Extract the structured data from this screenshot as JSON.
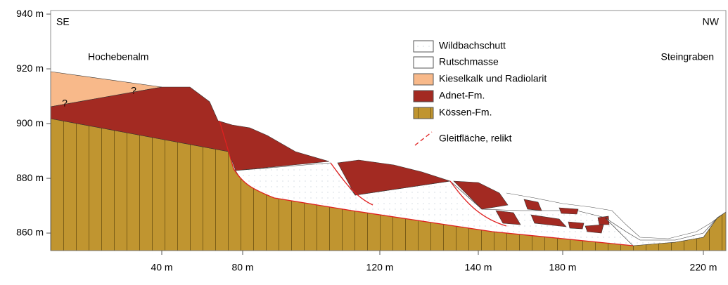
{
  "labels": {
    "left": "SE",
    "right": "NW",
    "site_left": "Hochebenalm",
    "site_right": "Steingraben",
    "question_marks": [
      "?",
      "?"
    ]
  },
  "legend": [
    "Wildbachschutt",
    "Rutschmasse",
    "Kieselkalk und Radiolarit",
    "Adnet-Fm.",
    "Kössen-Fm.",
    "Gleitfläche, relikt"
  ],
  "y_axis": {
    "ylim": [
      853.6,
      941.3
    ],
    "ticks": [
      {
        "value": 940,
        "label": "940 m"
      },
      {
        "value": 920,
        "label": "920 m"
      },
      {
        "value": 900,
        "label": "900 m"
      },
      {
        "value": 880,
        "label": "880 m"
      },
      {
        "value": 860,
        "label": "860 m"
      }
    ]
  },
  "x_axis": {
    "ticks": [
      "40 m",
      "80 m",
      "120 m",
      "140 m",
      "180 m",
      "220 m"
    ]
  }
}
